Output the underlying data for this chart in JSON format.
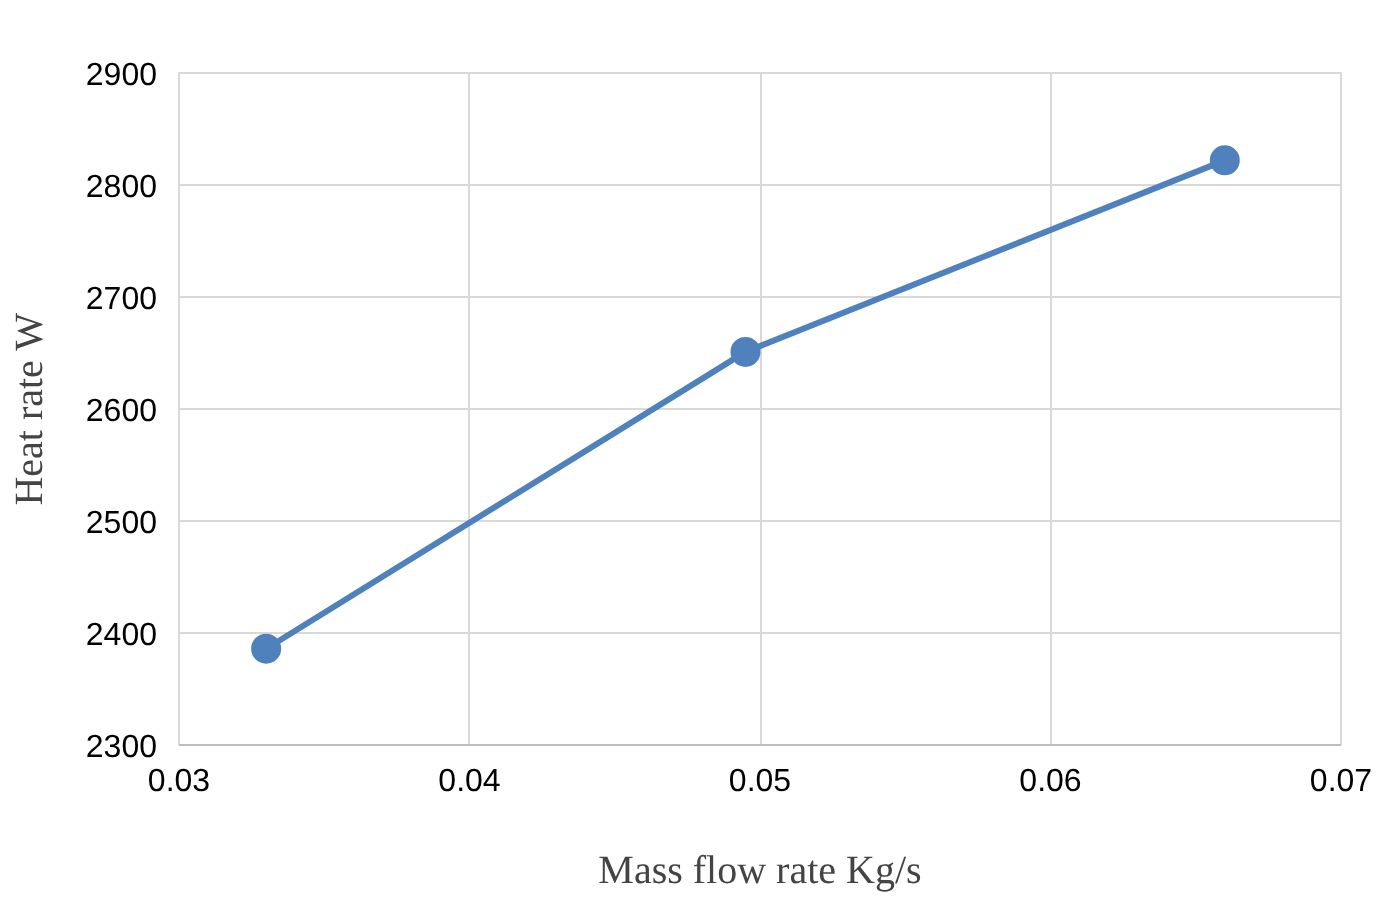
{
  "chart_data": {
    "type": "line",
    "xlabel": "Mass flow rate Kg/s",
    "ylabel": "Heat rate W",
    "x": [
      0.033,
      0.0495,
      0.066
    ],
    "series": [
      {
        "color": "#4f81bd",
        "values": [
          2386,
          2651,
          2822
        ]
      }
    ],
    "xlim": [
      0.03,
      0.07
    ],
    "xticks": [
      {
        "value": 0.03,
        "label": "0.03"
      },
      {
        "value": 0.04,
        "label": "0.04"
      },
      {
        "value": 0.05,
        "label": "0.05"
      },
      {
        "value": 0.06,
        "label": "0.06"
      },
      {
        "value": 0.07,
        "label": "0.07"
      }
    ],
    "ylim": [
      2300,
      2900
    ],
    "yticks": [
      2300,
      2400,
      2500,
      2600,
      2700,
      2800,
      2900
    ],
    "grid": true,
    "marker": "circle",
    "line_style": "solid"
  }
}
